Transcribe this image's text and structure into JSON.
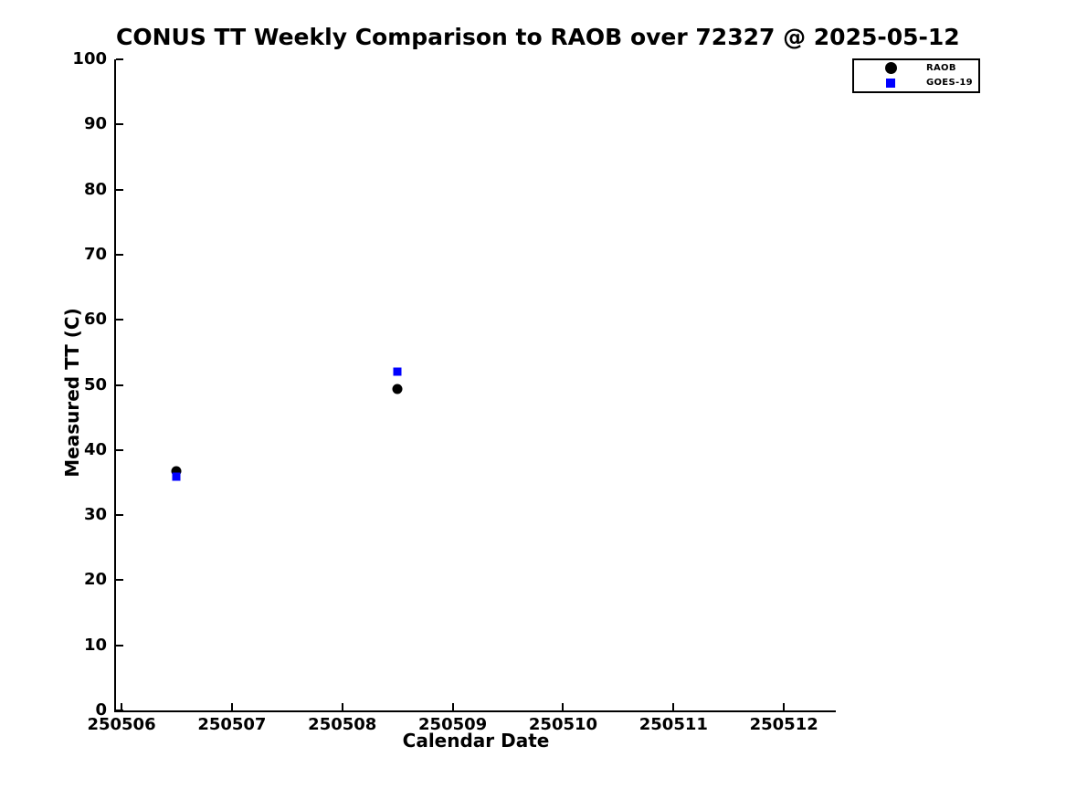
{
  "chart_data": {
    "type": "scatter",
    "title": "CONUS TT Weekly Comparison to RAOB over 72327 @ 2025-05-12",
    "xlabel": "Calendar Date",
    "ylabel": "Measured TT (C)",
    "x_ticks": [
      250506,
      250507,
      250508,
      250509,
      250510,
      250511,
      250512
    ],
    "y_ticks": [
      0,
      10,
      20,
      30,
      40,
      50,
      60,
      70,
      80,
      90,
      100
    ],
    "xlim": [
      250505.95,
      250512.47
    ],
    "ylim": [
      0,
      100
    ],
    "grid": false,
    "legend_position": "top-right-outside",
    "text_color": "#000000",
    "background_color": "#ffffff",
    "series": [
      {
        "name": "RAOB",
        "marker": "circle",
        "color": "#000000",
        "x": [
          250506.5,
          250508.5
        ],
        "y": [
          36.8,
          49.3
        ]
      },
      {
        "name": "GOES-19",
        "marker": "square",
        "color": "#0000ff",
        "x": [
          250506.5,
          250508.5
        ],
        "y": [
          35.9,
          52.1
        ]
      }
    ]
  }
}
